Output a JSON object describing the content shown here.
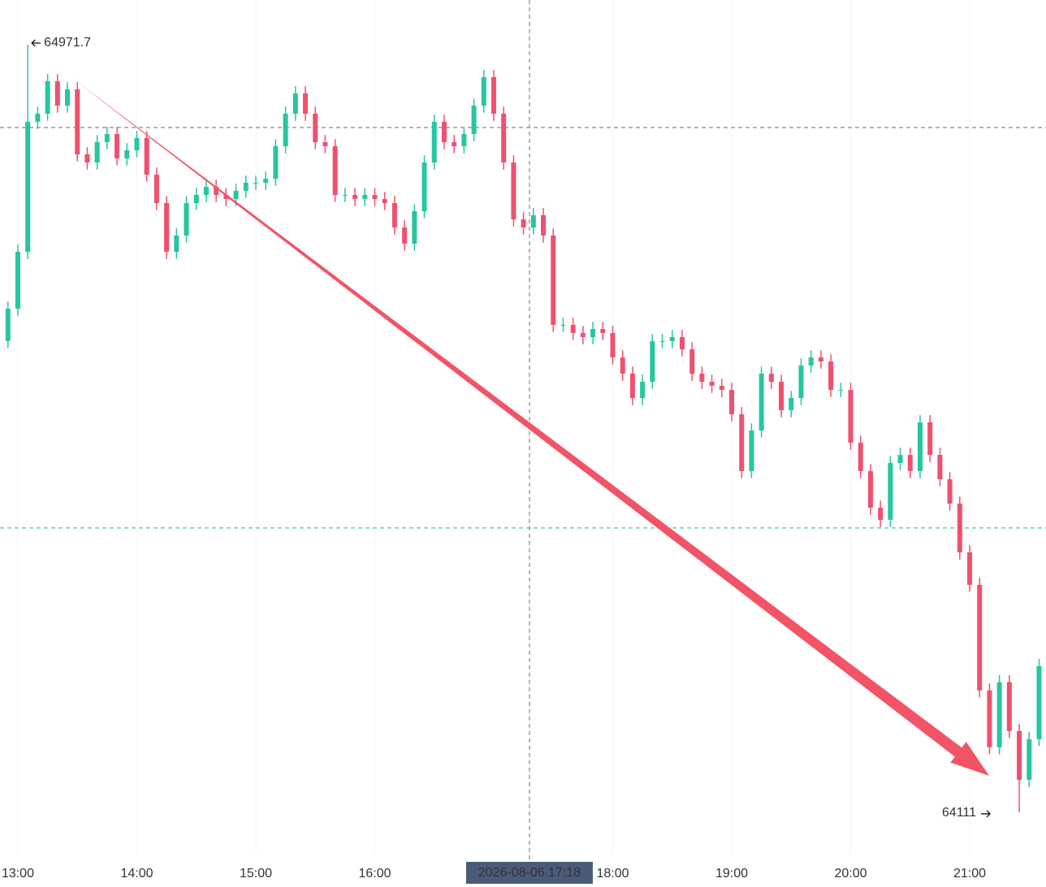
{
  "chart_data": {
    "type": "candlestick",
    "up_color": "#26c6a0",
    "down_color": "#f0506e",
    "xlim": [
      771,
      1298.5
    ],
    "ylim": [
      64065.4,
      65021.8
    ],
    "xticks": [
      {
        "value": 780,
        "label": "13:00"
      },
      {
        "value": 840,
        "label": "14:00"
      },
      {
        "value": 900,
        "label": "15:00"
      },
      {
        "value": 960,
        "label": "16:00"
      },
      {
        "value": 1080,
        "label": "18:00"
      },
      {
        "value": 1140,
        "label": "19:00"
      },
      {
        "value": 1200,
        "label": "20:00"
      },
      {
        "value": 1260,
        "label": "21:00"
      }
    ],
    "grid": true,
    "x": [
      775,
      780,
      785,
      790,
      795,
      800,
      805,
      810,
      815,
      820,
      825,
      830,
      835,
      840,
      845,
      850,
      855,
      860,
      865,
      870,
      875,
      880,
      885,
      890,
      895,
      900,
      905,
      910,
      915,
      920,
      925,
      930,
      935,
      940,
      945,
      950,
      955,
      960,
      965,
      970,
      975,
      980,
      985,
      990,
      995,
      1000,
      1005,
      1010,
      1015,
      1020,
      1025,
      1030,
      1035,
      1040,
      1045,
      1050,
      1055,
      1060,
      1065,
      1070,
      1075,
      1080,
      1085,
      1090,
      1095,
      1100,
      1105,
      1110,
      1115,
      1120,
      1125,
      1130,
      1135,
      1140,
      1145,
      1150,
      1155,
      1160,
      1165,
      1170,
      1175,
      1180,
      1185,
      1190,
      1195,
      1200,
      1205,
      1210,
      1215,
      1220,
      1225,
      1230,
      1235,
      1240,
      1245,
      1250,
      1255,
      1260,
      1265,
      1270,
      1275,
      1280,
      1285,
      1290,
      1295
    ],
    "open": [
      64639.3,
      64675.7,
      64739.4,
      64885.2,
      64894.3,
      64930.7,
      64903.4,
      64921.6,
      64848.7,
      64839.6,
      64862.4,
      64871.5,
      64844.2,
      64853.3,
      64867.0,
      64826.0,
      64794.1,
      64739.4,
      64757.7,
      64794.1,
      64803.2,
      64812.3,
      64803.2,
      64798.6,
      64807.8,
      64816.9,
      64816.9,
      64821.4,
      64857.8,
      64894.3,
      64917.1,
      64894.3,
      64862.4,
      64857.8,
      64803.2,
      64803.2,
      64798.6,
      64803.2,
      64798.6,
      64794.1,
      64766.8,
      64748.6,
      64785.0,
      64839.6,
      64885.2,
      64862.4,
      64857.8,
      64871.5,
      64903.4,
      64935.3,
      64894.3,
      64839.6,
      64775.9,
      64766.8,
      64780.4,
      64757.7,
      64657.5,
      64657.5,
      64648.4,
      64643.8,
      64652.9,
      64648.4,
      64621.0,
      64602.8,
      64575.5,
      64593.7,
      64639.3,
      64639.3,
      64643.8,
      64630.1,
      64602.8,
      64593.7,
      64589.2,
      64584.6,
      64557.3,
      64493.5,
      64539.1,
      64602.8,
      64593.7,
      64561.8,
      64575.5,
      64611.9,
      64621.0,
      64616.5,
      64584.6,
      64584.6,
      64525.4,
      64493.5,
      64452.5,
      64438.9,
      64502.6,
      64511.7,
      64493.5,
      64548.2,
      64511.7,
      64484.4,
      64457.1,
      64402.4,
      64366.0,
      64247.6,
      64183.9,
      64256.7,
      64202.1,
      64147.4,
      64193.0
    ],
    "high": [
      64683.7,
      64747.4,
      64971.7,
      64902.3,
      64938.7,
      64938.7,
      64929.6,
      64929.6,
      64856.7,
      64870.4,
      64879.5,
      64879.5,
      64861.3,
      64875.0,
      64875.0,
      64834.0,
      64802.1,
      64765.7,
      64802.1,
      64811.2,
      64820.3,
      64820.3,
      64811.2,
      64815.8,
      64824.9,
      64824.9,
      64829.4,
      64865.8,
      64902.3,
      64925.1,
      64925.1,
      64902.3,
      64870.4,
      64865.8,
      64811.2,
      64811.2,
      64811.2,
      64811.2,
      64806.6,
      64802.1,
      64774.8,
      64793.0,
      64847.6,
      64893.2,
      64893.2,
      64870.4,
      64879.5,
      64911.4,
      64943.3,
      64943.3,
      64902.3,
      64847.6,
      64783.9,
      64788.4,
      64788.4,
      64765.7,
      64665.5,
      64665.5,
      64656.4,
      64660.9,
      64660.9,
      64656.4,
      64629.0,
      64610.8,
      64601.7,
      64647.3,
      64647.3,
      64651.8,
      64651.8,
      64638.1,
      64610.8,
      64601.7,
      64597.2,
      64592.6,
      64565.3,
      64547.1,
      64610.8,
      64610.8,
      64601.7,
      64583.5,
      64619.9,
      64629.0,
      64629.0,
      64624.5,
      64592.6,
      64592.6,
      64533.4,
      64501.5,
      64460.5,
      64510.6,
      64519.7,
      64519.7,
      64556.2,
      64556.2,
      64519.7,
      64492.4,
      64465.1,
      64410.4,
      64374.0,
      64255.6,
      64264.7,
      64264.7,
      64210.1,
      64201.0,
      64282.9
    ],
    "low": [
      64631.3,
      64667.7,
      64731.4,
      64877.2,
      64886.3,
      64895.4,
      64895.4,
      64840.7,
      64831.6,
      64831.6,
      64854.4,
      64836.2,
      64836.2,
      64845.3,
      64818.0,
      64786.1,
      64731.4,
      64731.4,
      64749.7,
      64786.1,
      64795.2,
      64795.2,
      64790.6,
      64790.6,
      64799.8,
      64808.9,
      64808.9,
      64813.4,
      64849.8,
      64886.3,
      64886.3,
      64854.4,
      64849.8,
      64795.2,
      64795.2,
      64790.6,
      64790.6,
      64790.6,
      64786.1,
      64758.8,
      64740.6,
      64740.6,
      64777.0,
      64831.6,
      64854.4,
      64849.8,
      64849.8,
      64863.5,
      64895.4,
      64886.3,
      64831.6,
      64767.9,
      64758.8,
      64758.8,
      64749.7,
      64649.5,
      64649.5,
      64640.4,
      64635.8,
      64635.8,
      64640.4,
      64613.0,
      64594.8,
      64567.5,
      64567.5,
      64585.7,
      64631.3,
      64631.3,
      64622.1,
      64594.8,
      64585.7,
      64581.2,
      64576.6,
      64549.3,
      64485.5,
      64485.5,
      64531.1,
      64585.7,
      64553.8,
      64553.8,
      64567.5,
      64603.9,
      64608.5,
      64576.6,
      64576.6,
      64517.4,
      64485.5,
      64444.5,
      64430.9,
      64430.9,
      64494.6,
      64485.5,
      64485.5,
      64503.7,
      64476.4,
      64449.1,
      64394.4,
      64358.0,
      64239.6,
      64175.9,
      64175.9,
      64194.1,
      64111.0,
      64139.4,
      64185.0
    ],
    "close": [
      64675.7,
      64739.4,
      64885.2,
      64894.3,
      64930.7,
      64903.4,
      64921.6,
      64848.7,
      64839.6,
      64862.4,
      64871.5,
      64844.2,
      64853.3,
      64867.0,
      64826.0,
      64794.1,
      64739.4,
      64757.7,
      64794.1,
      64803.2,
      64812.3,
      64803.2,
      64798.6,
      64807.8,
      64816.9,
      64816.9,
      64821.4,
      64857.8,
      64894.3,
      64917.1,
      64894.3,
      64862.4,
      64857.8,
      64803.2,
      64803.2,
      64798.6,
      64803.2,
      64798.6,
      64794.1,
      64766.8,
      64748.6,
      64785.0,
      64839.6,
      64885.2,
      64862.4,
      64857.8,
      64871.5,
      64903.4,
      64935.3,
      64894.3,
      64839.6,
      64775.9,
      64766.8,
      64780.4,
      64757.7,
      64657.5,
      64657.5,
      64648.4,
      64643.8,
      64652.9,
      64648.4,
      64621.0,
      64602.8,
      64575.5,
      64593.7,
      64639.3,
      64639.3,
      64643.8,
      64630.1,
      64602.8,
      64593.7,
      64589.2,
      64584.6,
      64557.3,
      64493.5,
      64539.1,
      64602.8,
      64593.7,
      64561.8,
      64575.5,
      64611.9,
      64621.0,
      64616.5,
      64584.6,
      64584.6,
      64525.4,
      64493.5,
      64452.5,
      64438.9,
      64502.6,
      64511.7,
      64493.5,
      64548.2,
      64511.7,
      64484.4,
      64457.1,
      64402.4,
      64366.0,
      64247.6,
      64183.9,
      64256.7,
      64202.1,
      64147.4,
      64193.0,
      64274.9
    ],
    "high_mark": {
      "x": 785,
      "value": 64971.7
    },
    "low_mark": {
      "x": 1285,
      "value": 64111.0
    },
    "price_lines": [
      {
        "value": 64878.8,
        "color": "#888888"
      },
      {
        "value": 64429.8,
        "color": "#26c6a0"
      }
    ],
    "crosshair": {
      "x": 1038,
      "label": "2026-08-06 17:18"
    }
  }
}
